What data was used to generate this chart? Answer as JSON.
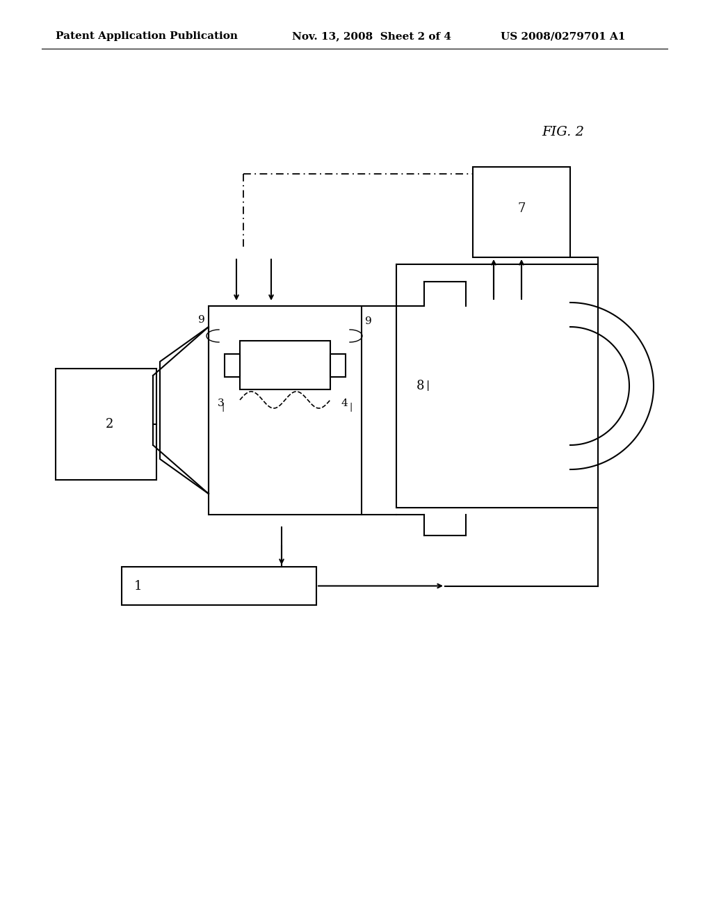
{
  "title_left": "Patent Application Publication",
  "title_mid": "Nov. 13, 2008  Sheet 2 of 4",
  "title_right": "US 2008/0279701 A1",
  "fig_label": "FIG. 2",
  "background": "#ffffff",
  "line_color": "#000000",
  "header_fontsize": 11,
  "label_fontsize": 12,
  "fig_label_fontsize": 14
}
